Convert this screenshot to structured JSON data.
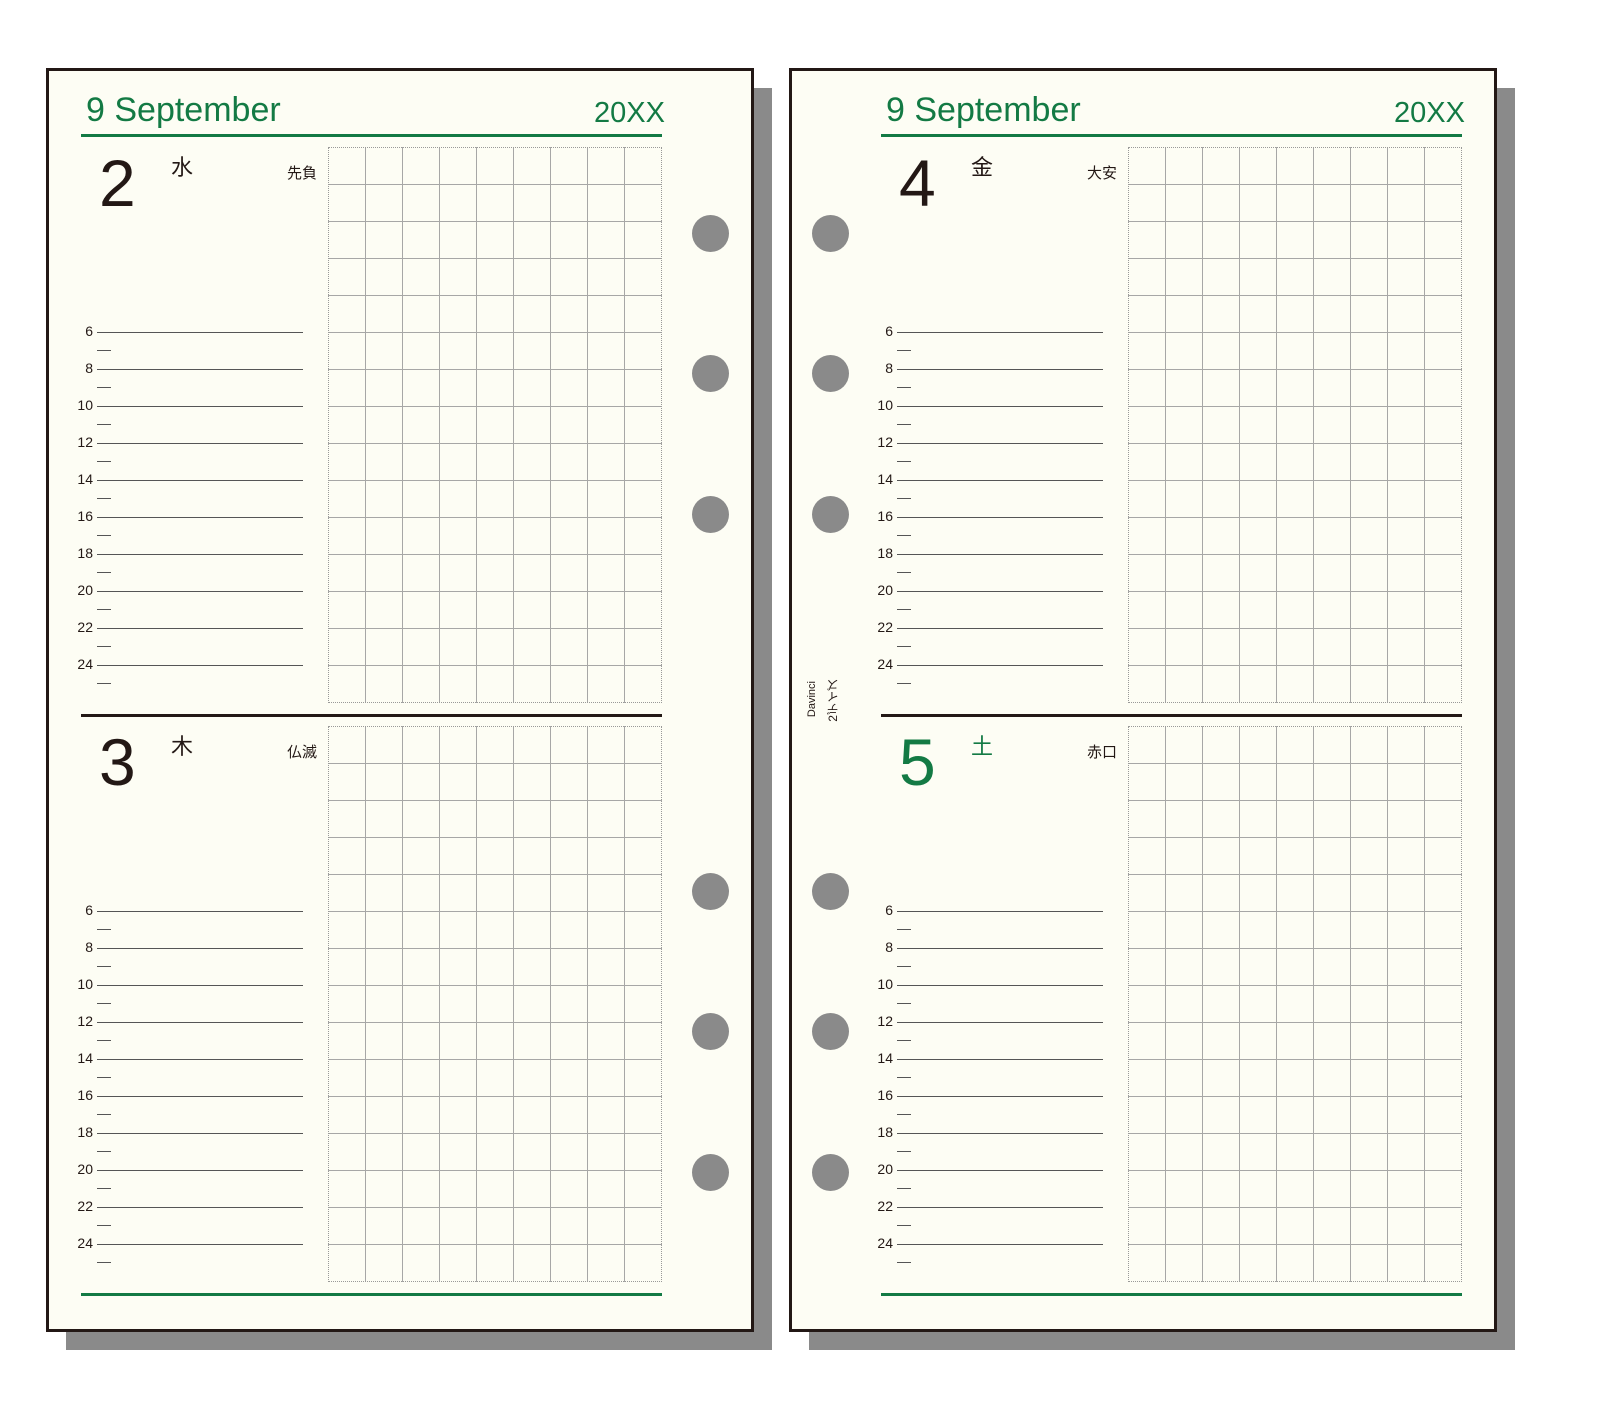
{
  "colors": {
    "accent": "#137a44",
    "ink": "#231815",
    "paper": "#fdfdf4",
    "holes": "#8a8a8a"
  },
  "pages": [
    {
      "month": "9 September",
      "year": "20XX",
      "days": [
        {
          "number": "2",
          "weekday": "水",
          "rokuyo": "先負",
          "color": "#231815"
        },
        {
          "number": "3",
          "weekday": "木",
          "rokuyo": "仏滅",
          "color": "#231815"
        }
      ]
    },
    {
      "month": "9 September",
      "year": "20XX",
      "days": [
        {
          "number": "4",
          "weekday": "金",
          "rokuyo": "大安",
          "color": "#231815"
        },
        {
          "number": "5",
          "weekday": "土",
          "rokuyo": "赤口",
          "color": "#137a44"
        }
      ]
    }
  ],
  "times": [
    "6",
    "8",
    "10",
    "12",
    "14",
    "16",
    "18",
    "20",
    "22",
    "24"
  ],
  "brand": {
    "name": "Davinci",
    "product": "2デイズ"
  }
}
